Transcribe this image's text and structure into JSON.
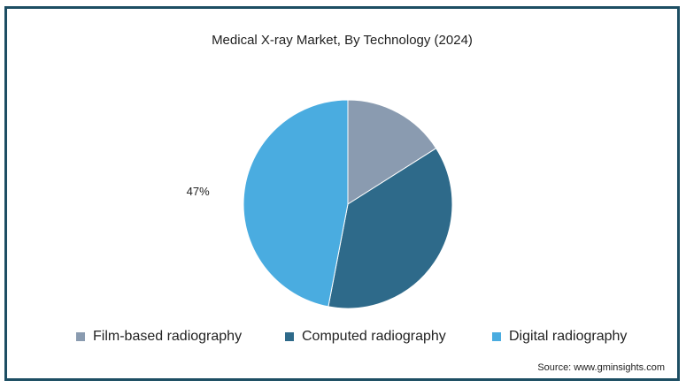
{
  "chart_data": {
    "type": "pie",
    "title": "Medical X-ray Market, By Technology (2024)",
    "slices": [
      {
        "label": "Film-based radiography",
        "value": 16,
        "color": "#8a9bb0"
      },
      {
        "label": "Computed radiography",
        "value": 37,
        "color": "#2e6a8a"
      },
      {
        "label": "Digital radiography",
        "value": 47,
        "color": "#4aace0"
      }
    ],
    "data_labels": [
      {
        "slice": 2,
        "text": "47%"
      }
    ],
    "legend_position": "bottom"
  },
  "source": "Source: www.gminsights.com"
}
